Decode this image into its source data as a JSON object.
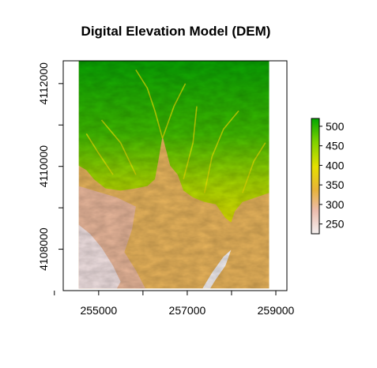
{
  "title": "Digital Elevation Model (DEM)",
  "map": {
    "x_ticks": [
      255000,
      257000,
      259000
    ],
    "x_tick_labels": [
      "255000",
      "257000",
      "259000"
    ],
    "x_minor_ticks": [
      254000,
      256000,
      258000
    ],
    "y_ticks": [
      4108000,
      4110000,
      4112000
    ],
    "y_tick_labels": [
      "4108000",
      "4110000",
      "4112000"
    ],
    "y_minor_ticks": [
      4109000,
      4111000
    ],
    "x_range": [
      254200,
      259250
    ],
    "y_range": [
      4107000,
      4112550
    ],
    "raster_extent": {
      "xmin": 254550,
      "xmax": 258850,
      "ymin": 4107050,
      "ymax": 4112550
    }
  },
  "legend": {
    "ticks": [
      250,
      300,
      350,
      400,
      450,
      500
    ],
    "tick_labels": [
      "250",
      "300",
      "350",
      "400",
      "450",
      "500"
    ],
    "range": [
      225,
      520
    ],
    "colors": [
      "#f2f2f2",
      "#ecb176",
      "#e6b32e",
      "#e5de00",
      "#7ed000",
      "#00a600"
    ]
  }
}
